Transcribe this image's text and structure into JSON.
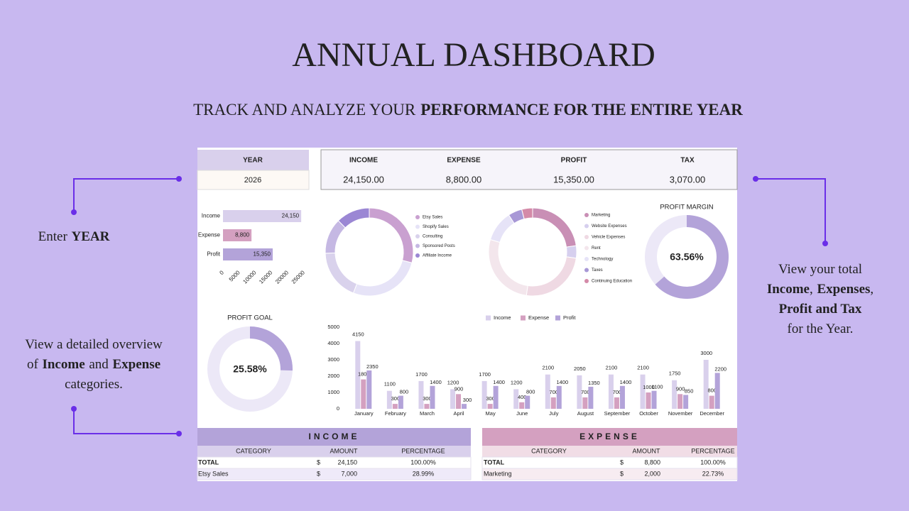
{
  "header": {
    "title": "ANNUAL DASHBOARD",
    "subtitle": [
      {
        "text": "TRACK AND ANALYZE YOUR",
        "bold": false
      },
      {
        "text": "PERFORMANCE FOR THE ENTIRE YEAR",
        "bold": true
      }
    ]
  },
  "callouts": {
    "year": [
      [
        {
          "text": "Enter",
          "bold": false
        },
        {
          "text": "YEAR",
          "bold": true
        }
      ]
    ],
    "totals": [
      [
        {
          "text": "View your total",
          "bold": false
        }
      ],
      [
        {
          "text": "Income",
          "bold": true
        },
        {
          "text": ",",
          "bold": false
        },
        {
          "text": "Expenses",
          "bold": true
        },
        {
          "text": ",",
          "bold": false
        }
      ],
      [
        {
          "text": "Profit and Tax",
          "bold": true
        }
      ],
      [
        {
          "text": "for the Year.",
          "bold": false
        }
      ]
    ],
    "overview": [
      [
        {
          "text": "View a detailed overview",
          "bold": false
        }
      ],
      [
        {
          "text": "of",
          "bold": false
        },
        {
          "text": "Income",
          "bold": true
        },
        {
          "text": "and",
          "bold": false
        },
        {
          "text": "Expense",
          "bold": true
        }
      ],
      [
        {
          "text": "categories.",
          "bold": false
        }
      ]
    ]
  },
  "year": {
    "label": "YEAR",
    "value": "2026"
  },
  "summary": {
    "labels": [
      "INCOME",
      "EXPENSE",
      "PROFIT",
      "TAX"
    ],
    "values": [
      "24,150.00",
      "8,800.00",
      "15,350.00",
      "3,070.00"
    ]
  },
  "chart_data": [
    {
      "type": "hbar",
      "categories": [
        "Income",
        "Expense",
        "Profit"
      ],
      "values": [
        24150,
        8800,
        15350
      ],
      "value_labels": [
        "24,150",
        "8,800",
        "15,350"
      ],
      "colors": [
        "#d9d0ec",
        "#d4a0c0",
        "#b3a3d9"
      ],
      "xlim": [
        0,
        25000
      ],
      "xticks": [
        0,
        5000,
        10000,
        15000,
        20000,
        25000
      ]
    },
    {
      "type": "donut",
      "categories": [
        "Etsy Sales",
        "Shopify Sales",
        "Consulting",
        "Sponsored Posts",
        "Affiliate Income"
      ],
      "values": [
        7000,
        6500,
        4500,
        3150,
        3000
      ],
      "colors": [
        "#c9a0d0",
        "#e6e3f7",
        "#d9d2ec",
        "#c5b8e3",
        "#9b87d4"
      ]
    },
    {
      "type": "donut",
      "categories": [
        "Marketing",
        "Website Expenses",
        "Vehicle Expenses",
        "Rent",
        "Technology",
        "Taxes",
        "Continuing Education"
      ],
      "values": [
        2000,
        400,
        2200,
        2400,
        1000,
        450,
        350
      ],
      "colors": [
        "#c98fb5",
        "#d6cfee",
        "#efd9e3",
        "#f3e6ec",
        "#e6e3f7",
        "#a898d6",
        "#d48aa8"
      ]
    },
    {
      "type": "gauge",
      "title": "PROFIT MARGIN",
      "values": [
        63.56
      ],
      "value_labels": [
        "63.56%"
      ],
      "ylim": [
        0,
        100
      ],
      "color": "#b3a3d9",
      "track_color": "#ece8f7"
    },
    {
      "type": "gauge",
      "title": "PROFIT GOAL",
      "values": [
        25.58
      ],
      "value_labels": [
        "25.58%"
      ],
      "ylim": [
        0,
        100
      ],
      "color": "#b3a3d9",
      "track_color": "#ece8f7"
    },
    {
      "type": "grouped-bar",
      "categories": [
        "January",
        "February",
        "March",
        "April",
        "May",
        "June",
        "July",
        "August",
        "September",
        "October",
        "November",
        "December"
      ],
      "series": [
        {
          "name": "Income",
          "color": "#d9d0ec",
          "values": [
            4150,
            1100,
            1700,
            1200,
            1700,
            1200,
            2100,
            2050,
            2100,
            2100,
            1750,
            3000
          ]
        },
        {
          "name": "Expense",
          "color": "#d4a0c0",
          "values": [
            1800,
            300,
            300,
            900,
            300,
            400,
            700,
            700,
            700,
            1000,
            900,
            800
          ]
        },
        {
          "name": "Profit",
          "color": "#b3a3d9",
          "values": [
            2350,
            800,
            1400,
            300,
            1400,
            800,
            1400,
            1350,
            1400,
            1100,
            850,
            2200
          ]
        }
      ],
      "ylim": [
        0,
        5000
      ],
      "yticks": [
        0,
        1000,
        2000,
        3000,
        4000,
        5000
      ]
    }
  ],
  "tables": [
    {
      "title": "INCOME",
      "title_color": "#b3a3d9",
      "header_color": "#d9d0ec",
      "row_color": "#efeaf9",
      "columns": [
        "CATEGORY",
        "AMOUNT",
        "PERCENTAGE"
      ],
      "rows": [
        [
          "TOTAL",
          "$",
          "24,150",
          "100.00%"
        ],
        [
          "Etsy Sales",
          "$",
          "7,000",
          "28.99%"
        ]
      ]
    },
    {
      "title": "EXPENSE",
      "title_color": "#d4a0c0",
      "header_color": "#f1dde6",
      "row_color": "#f7ecf1",
      "columns": [
        "CATEGORY",
        "AMOUNT",
        "PERCENTAGE"
      ],
      "rows": [
        [
          "TOTAL",
          "$",
          "8,800",
          "100.00%"
        ],
        [
          "Marketing",
          "$",
          "2,000",
          "22.73%"
        ]
      ]
    }
  ]
}
